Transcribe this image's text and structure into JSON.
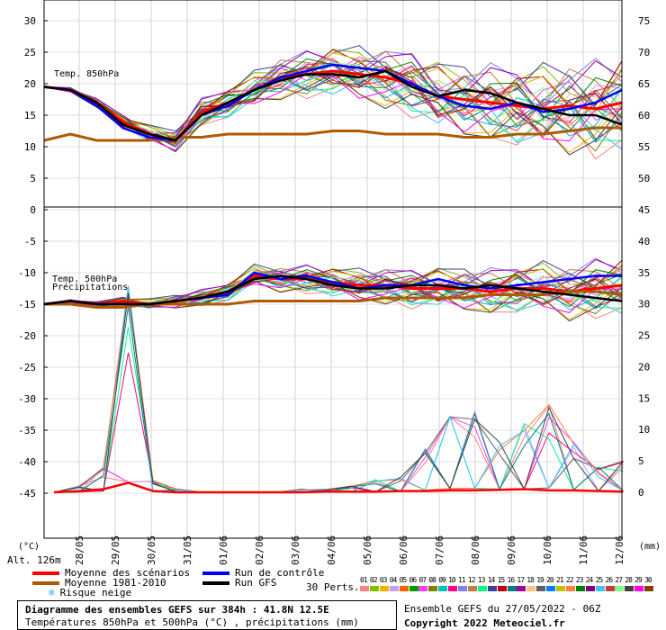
{
  "chart_data": {
    "type": "line",
    "title": "Diagramme des ensembles GEFS sur 384h : 41.8N 12.5E",
    "subtitle": "Températures 850hPa et 500hPa (°C) , précipitations (mm)",
    "left_axis_ticks": [
      "30",
      "25",
      "20",
      "15",
      "10",
      "5",
      "0",
      "-5",
      "-10",
      "-15",
      "-20",
      "-25",
      "-30",
      "-35",
      "-40",
      "-45"
    ],
    "right_axis_upper_ticks": [
      "75",
      "70",
      "65",
      "60",
      "55",
      "50"
    ],
    "right_axis_lower_ticks": [
      "45",
      "40",
      "35",
      "30",
      "25",
      "20",
      "15",
      "10",
      "5",
      "0"
    ],
    "left_unit": "(°C)",
    "right_unit": "(mm)",
    "altitude": "Alt. 126m",
    "x_ticks": [
      "28/05",
      "29/05",
      "30/05",
      "31/05",
      "01/06",
      "02/06",
      "03/06",
      "04/06",
      "05/06",
      "06/06",
      "07/06",
      "08/06",
      "09/06",
      "10/06",
      "11/06",
      "12/06"
    ],
    "panel_labels": {
      "t850": "Temp. 850hPa",
      "t500": "Temp. 500hPa",
      "precip": "Précipitations"
    },
    "series": [
      {
        "name": "Moyenne des scénarios",
        "color": "#ff0000",
        "t850": [
          19.5,
          19,
          17,
          14,
          12,
          11,
          15.5,
          17,
          19,
          21,
          21.5,
          22,
          21.5,
          21,
          20,
          18,
          17.5,
          17,
          16.5,
          16,
          16.5,
          16,
          17
        ],
        "t500": [
          -15,
          -14.5,
          -15,
          -14.5,
          -15,
          -14.5,
          -14,
          -13,
          -10.5,
          -11,
          -11,
          -11.5,
          -12,
          -12,
          -12.5,
          -12.5,
          -12.5,
          -13,
          -12.5,
          -12.5,
          -13,
          -12.5,
          -12
        ]
      },
      {
        "name": "Moyenne 1981-2010",
        "color": "#b05a00",
        "t850": [
          11,
          12,
          11,
          11,
          11,
          11.5,
          11.5,
          12,
          12,
          12,
          12,
          12.5,
          12.5,
          12,
          12,
          12,
          11.5,
          11.5,
          12,
          12,
          12.5,
          13,
          13
        ],
        "t500": [
          -15,
          -15,
          -15.5,
          -15.5,
          -15,
          -15,
          -15,
          -15,
          -14.5,
          -14.5,
          -14.5,
          -14.5,
          -14.5,
          -14,
          -14,
          -14,
          -14,
          -13.5,
          -13.5,
          -13.5,
          -13,
          -13,
          -13.5
        ]
      },
      {
        "name": "Run de contrôle",
        "color": "#0000ff",
        "t850": [
          19.5,
          19,
          16.5,
          13,
          11.5,
          11,
          15,
          16.5,
          19,
          21,
          22,
          23,
          22.5,
          22,
          20,
          18,
          16.5,
          16,
          17,
          15.5,
          16,
          17,
          19
        ],
        "t500": [
          -15,
          -14.5,
          -15,
          -15,
          -15,
          -14.5,
          -14,
          -13.5,
          -10,
          -11,
          -10.5,
          -11.5,
          -12.5,
          -12,
          -12,
          -11,
          -12,
          -12.5,
          -12,
          -11.5,
          -11,
          -10.5,
          -10.5
        ]
      },
      {
        "name": "Run GFS",
        "color": "#000000",
        "t850": [
          19.5,
          19,
          17,
          13.5,
          12,
          11,
          15,
          17,
          19,
          20.5,
          21.5,
          21.5,
          21,
          22,
          19.5,
          18,
          19,
          18.5,
          17,
          16,
          15,
          15,
          13.5
        ],
        "t500": [
          -15,
          -14.5,
          -15,
          -15,
          -15,
          -14.5,
          -14,
          -13,
          -11,
          -10.5,
          -11,
          -12,
          -12.5,
          -12.5,
          -12,
          -12,
          -12.5,
          -12,
          -12.5,
          -13,
          -13.5,
          -14,
          -14.5
        ]
      }
    ],
    "precip_mean_mm": [
      0,
      0.2,
      0.5,
      1.5,
      0.2,
      0,
      0,
      0,
      0,
      0,
      0,
      0.1,
      0.1,
      0.1,
      0.2,
      0.2,
      0.3,
      0.3,
      0.4,
      0.5,
      0.3,
      0.3,
      0.2,
      0.1
    ],
    "precip_peaks_mm": [
      0,
      1,
      4,
      33,
      2,
      0.5,
      0,
      0,
      0,
      0,
      0.5,
      0.5,
      1,
      2,
      3,
      7,
      12,
      13,
      10,
      11,
      14,
      8,
      4,
      5
    ],
    "legend": {
      "mean": "Moyenne des scénarios",
      "control": "Run de contrôle",
      "climo": "Moyenne 1981-2010",
      "gfs": "Run GFS",
      "snow": "Risque neige",
      "perts": "30 Perts."
    },
    "pert_numbers": [
      "01",
      "02",
      "03",
      "04",
      "05",
      "06",
      "07",
      "08",
      "09",
      "10",
      "11",
      "12",
      "13",
      "14",
      "15",
      "16",
      "17",
      "18",
      "19",
      "20",
      "21",
      "22",
      "23",
      "24",
      "25",
      "26",
      "27",
      "28",
      "29",
      "30"
    ],
    "pert_colors": [
      "#ff8080",
      "#80c000",
      "#ffb000",
      "#c0a0ff",
      "#ff6000",
      "#00a000",
      "#ff40ff",
      "#808000",
      "#00c0c0",
      "#ff0080",
      "#8080ff",
      "#c08040",
      "#00ff80",
      "#4040a0",
      "#c00000",
      "#008080",
      "#a000a0",
      "#ffc080",
      "#606060",
      "#0080ff",
      "#c0c000",
      "#ff8040",
      "#008000",
      "#800080",
      "#40c0ff",
      "#c04040",
      "#80ff80",
      "#404040",
      "#ff00ff",
      "#804000"
    ],
    "ensemble_label": "Ensemble GEFS du 27/05/2022 - 06Z",
    "copyright": "Copyright 2022 Meteociel.fr"
  }
}
